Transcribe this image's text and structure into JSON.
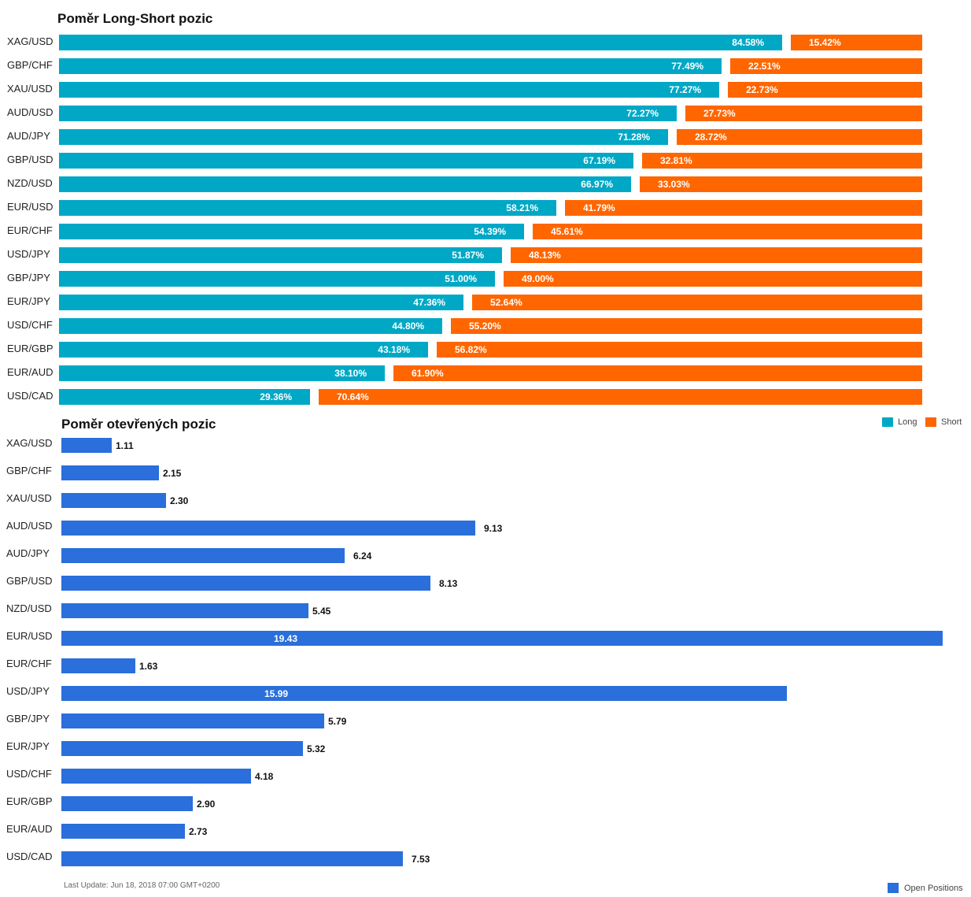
{
  "colors": {
    "long": "#00a8c6",
    "short": "#ff6600",
    "open": "#2a6fdb"
  },
  "chart_data": [
    {
      "type": "bar",
      "orientation": "horizontal-stacked",
      "title": "Poměr Long-Short pozic",
      "categories": [
        "XAG/USD",
        "GBP/CHF",
        "XAU/USD",
        "AUD/USD",
        "AUD/JPY",
        "GBP/USD",
        "NZD/USD",
        "EUR/USD",
        "EUR/CHF",
        "USD/JPY",
        "GBP/JPY",
        "EUR/JPY",
        "USD/CHF",
        "EUR/GBP",
        "EUR/AUD",
        "USD/CAD"
      ],
      "series": [
        {
          "name": "Long",
          "values": [
            84.58,
            77.49,
            77.27,
            72.27,
            71.28,
            67.19,
            66.97,
            58.21,
            54.39,
            51.87,
            51.0,
            47.36,
            44.8,
            43.18,
            38.1,
            29.36
          ],
          "labels": [
            "84.58%",
            "77.49%",
            "77.27%",
            "72.27%",
            "71.28%",
            "67.19%",
            "66.97%",
            "58.21%",
            "54.39%",
            "51.87%",
            "51.00%",
            "47.36%",
            "44.80%",
            "43.18%",
            "38.10%",
            "29.36%"
          ]
        },
        {
          "name": "Short",
          "values": [
            15.42,
            22.51,
            22.73,
            27.73,
            28.72,
            32.81,
            33.03,
            41.79,
            45.61,
            48.13,
            49.0,
            52.64,
            55.2,
            56.82,
            61.9,
            70.64
          ],
          "labels": [
            "15.42%",
            "22.51%",
            "22.73%",
            "27.73%",
            "28.72%",
            "32.81%",
            "33.03%",
            "41.79%",
            "45.61%",
            "48.13%",
            "49.00%",
            "52.64%",
            "55.20%",
            "56.82%",
            "61.90%",
            "70.64%"
          ]
        }
      ],
      "ylim": [
        0,
        100
      ],
      "legend": "top-right"
    },
    {
      "type": "bar",
      "orientation": "horizontal",
      "title": "Poměr otevřených pozic",
      "categories": [
        "XAG/USD",
        "GBP/CHF",
        "XAU/USD",
        "AUD/USD",
        "AUD/JPY",
        "GBP/USD",
        "NZD/USD",
        "EUR/USD",
        "EUR/CHF",
        "USD/JPY",
        "GBP/JPY",
        "EUR/JPY",
        "USD/CHF",
        "EUR/GBP",
        "EUR/AUD",
        "USD/CAD"
      ],
      "series": [
        {
          "name": "Open Positions",
          "values": [
            1.11,
            2.15,
            2.3,
            9.13,
            6.24,
            8.13,
            5.45,
            19.43,
            1.63,
            15.99,
            5.79,
            5.32,
            4.18,
            2.9,
            2.73,
            7.53
          ],
          "labels": [
            "1.11",
            "2.15",
            "2.30",
            "9.13",
            "6.24",
            "8.13",
            "5.45",
            "19.43",
            "1.63",
            "15.99",
            "5.79",
            "5.32",
            "4.18",
            "2.90",
            "2.73",
            "7.53"
          ]
        }
      ],
      "xlim": [
        0,
        19.43
      ],
      "legend": "bottom-right"
    }
  ],
  "legend_top": {
    "long": "Long",
    "short": "Short"
  },
  "legend_bottom": {
    "open": "Open Positions"
  },
  "footer": "Last Update: Jun 18, 2018 07:00 GMT+0200"
}
